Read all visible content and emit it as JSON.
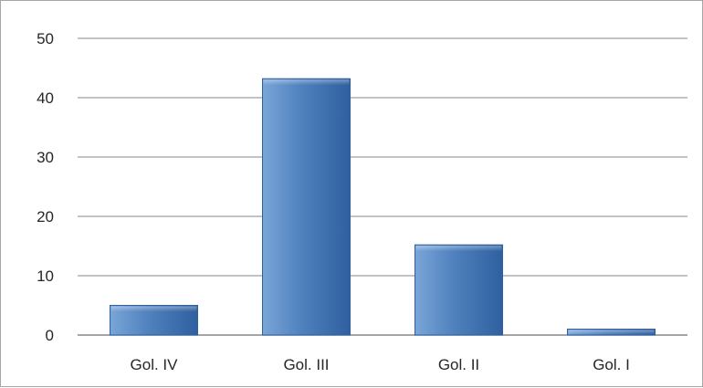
{
  "chart_data": {
    "type": "bar",
    "categories": [
      "Gol. IV",
      "Gol. III",
      "Gol. II",
      "Gol. I"
    ],
    "values": [
      5,
      43.2,
      15.2,
      1
    ],
    "yticks": [
      "0",
      "10",
      "20",
      "30",
      "40",
      "50"
    ],
    "ylim": [
      0,
      50
    ],
    "grid": true,
    "legend": "none",
    "bar_color": "#4f81bd",
    "bar_color_dark": "#2f5f9f",
    "bar_color_light": "#7aa5d8",
    "grid_color": "#878787"
  }
}
